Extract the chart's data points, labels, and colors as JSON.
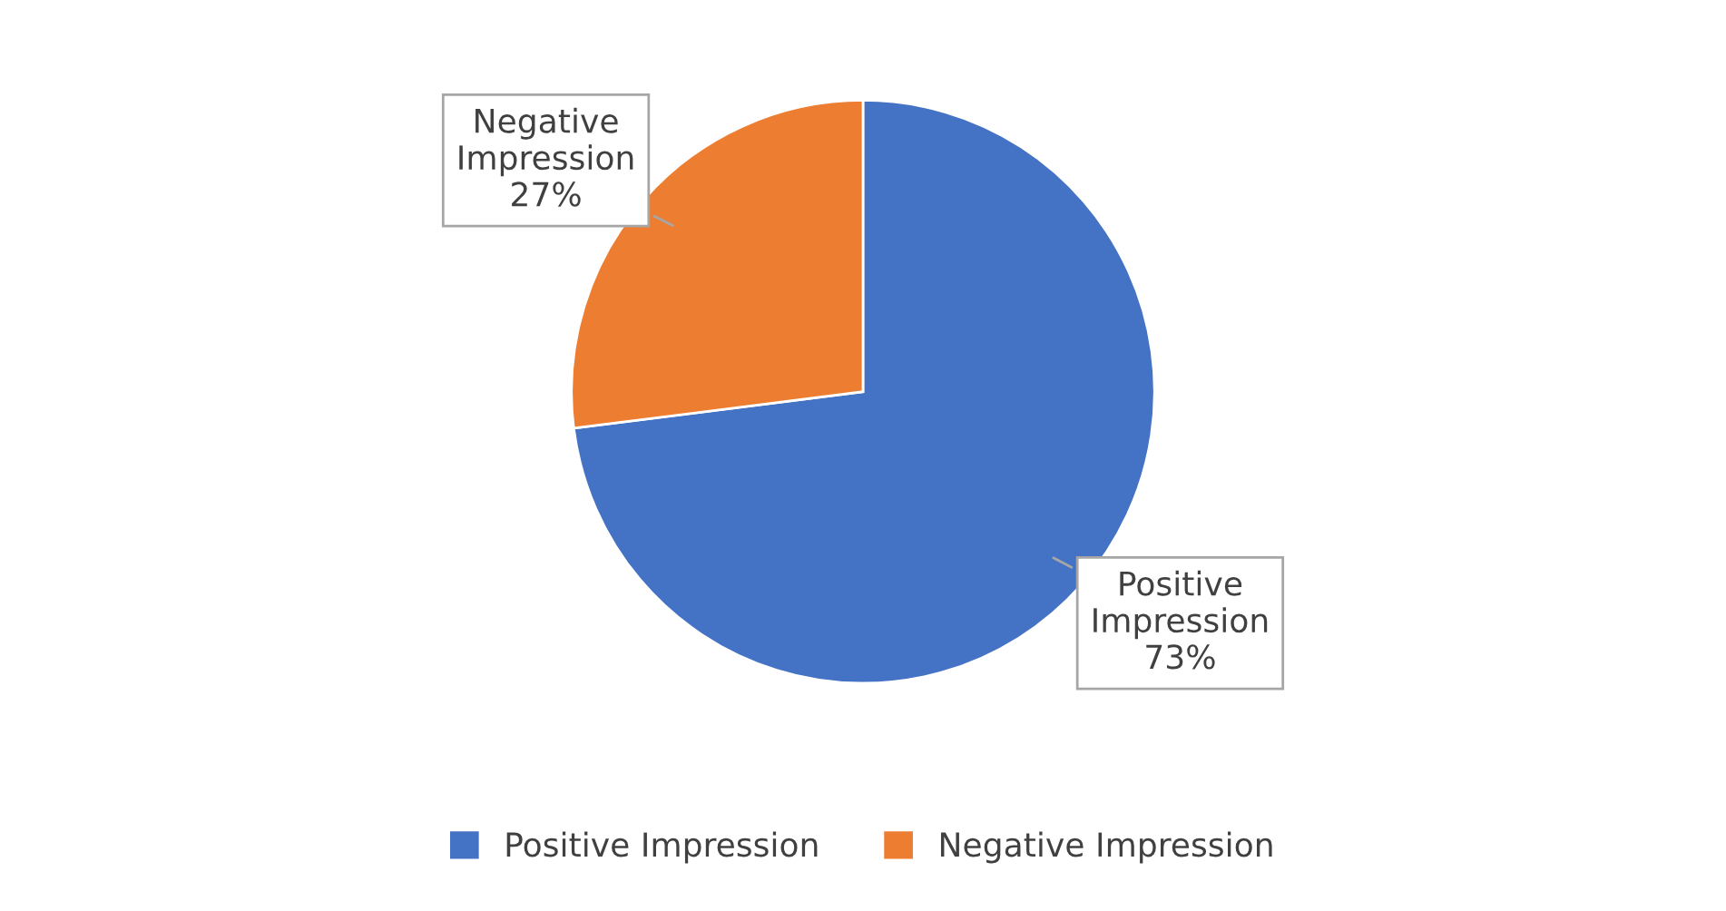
{
  "chart_data": {
    "type": "pie",
    "categories": [
      "Positive Impression",
      "Negative Impression"
    ],
    "values": [
      73,
      27
    ],
    "colors": [
      "#4472c4",
      "#ed7d31"
    ],
    "value_labels": [
      "73%",
      "27%"
    ],
    "legend": "bottom"
  }
}
